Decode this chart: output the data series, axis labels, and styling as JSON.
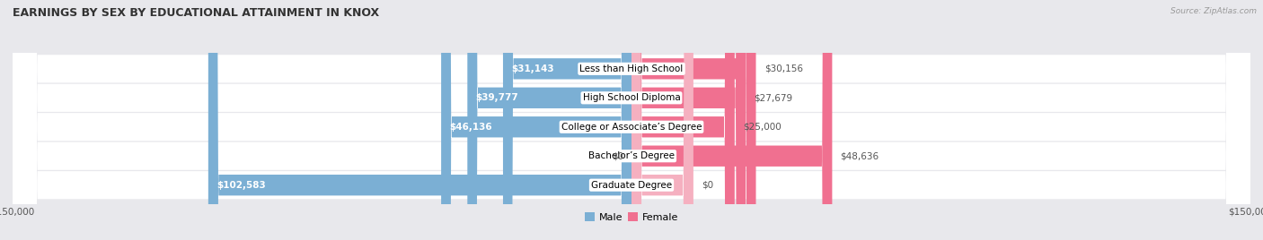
{
  "title": "EARNINGS BY SEX BY EDUCATIONAL ATTAINMENT IN KNOX",
  "source": "Source: ZipAtlas.com",
  "categories": [
    "Less than High School",
    "High School Diploma",
    "College or Associate’s Degree",
    "Bachelor’s Degree",
    "Graduate Degree"
  ],
  "male_values": [
    31143,
    39777,
    46136,
    0,
    102583
  ],
  "female_values": [
    30156,
    27679,
    25000,
    48636,
    0
  ],
  "male_color": "#7bafd4",
  "female_color": "#f07090",
  "female_color_light": "#f5b0c0",
  "max_val": 150000,
  "bg_color": "#e8e8ec",
  "row_bg_color": "#f5f5f8",
  "title_fontsize": 9,
  "label_fontsize": 7.5,
  "tick_fontsize": 7.5,
  "legend_fontsize": 8,
  "value_color": "#555555"
}
